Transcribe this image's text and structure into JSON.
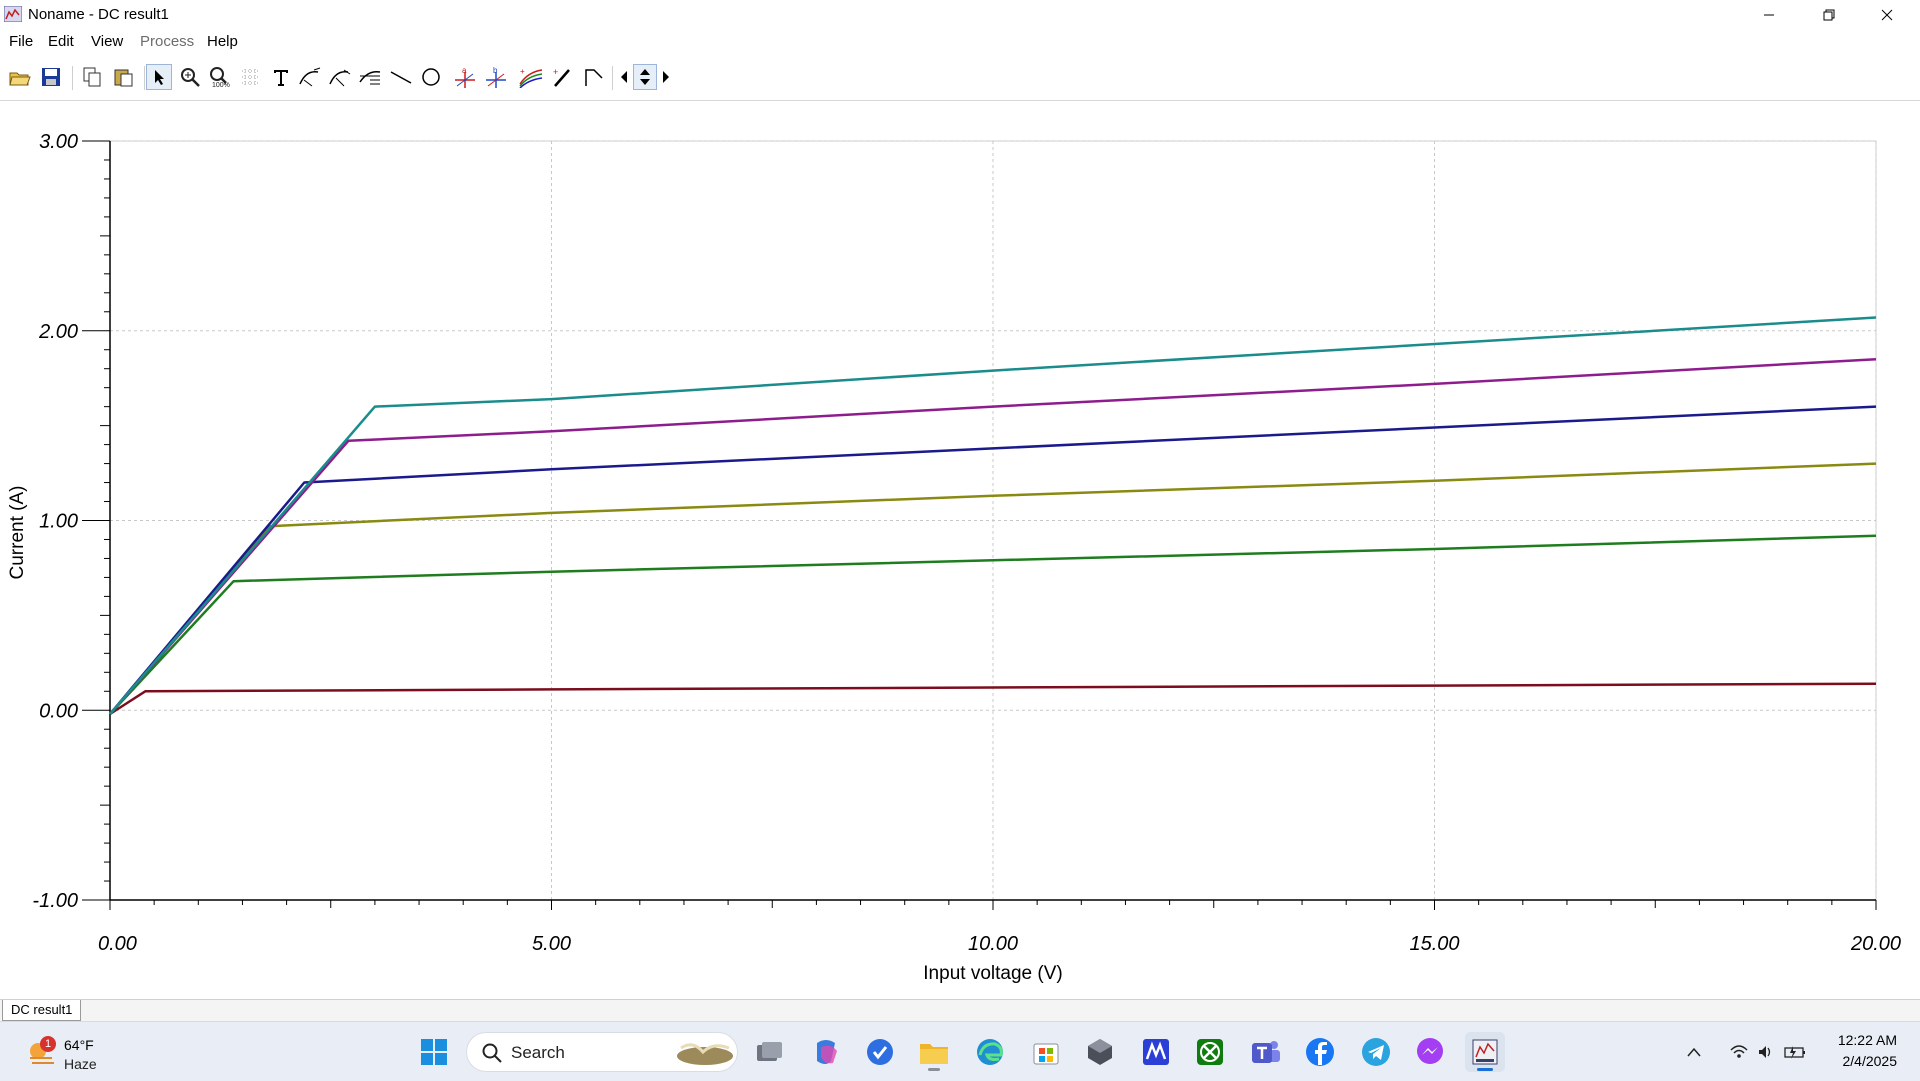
{
  "window": {
    "title": "Noname - DC result1"
  },
  "menu": [
    {
      "label": "File",
      "enabled": true
    },
    {
      "label": "Edit",
      "enabled": true
    },
    {
      "label": "View",
      "enabled": true
    },
    {
      "label": "Process",
      "enabled": false
    },
    {
      "label": "Help",
      "enabled": true
    }
  ],
  "toolbar": {
    "buttons": [
      "open-icon",
      "save-icon",
      "copy-icon",
      "paste-icon",
      "pointer-icon",
      "zoom-in-icon",
      "zoom-100-icon",
      "grid-icon",
      "text-icon",
      "curve-label-icon",
      "curve-label-2-icon",
      "axis-label-icon",
      "line-icon",
      "ellipse-icon",
      "cursor-a-icon",
      "cursor-b-icon",
      "curves-icon",
      "pen-icon",
      "step-icon",
      "nav-left-icon",
      "nav-updown-icon",
      "nav-right-icon"
    ]
  },
  "chart_data": {
    "type": "line",
    "xlabel": "Input voltage (V)",
    "ylabel": "Current (A)",
    "xlim": [
      0,
      20
    ],
    "ylim": [
      -1,
      3
    ],
    "xticks": [
      "0.00",
      "5.00",
      "10.00",
      "15.00",
      "20.00"
    ],
    "yticks": [
      "-1.00",
      "0.00",
      "1.00",
      "2.00",
      "3.00"
    ],
    "grid": true,
    "series": [
      {
        "color": "#7b0d1e",
        "points": [
          [
            0,
            -0.02
          ],
          [
            0.4,
            0.1
          ],
          [
            5,
            0.11
          ],
          [
            10,
            0.12
          ],
          [
            15,
            0.13
          ],
          [
            20,
            0.14
          ]
        ]
      },
      {
        "color": "#1e7d1e",
        "points": [
          [
            0,
            -0.02
          ],
          [
            1.4,
            0.68
          ],
          [
            5,
            0.73
          ],
          [
            10,
            0.79
          ],
          [
            15,
            0.85
          ],
          [
            20,
            0.92
          ]
        ]
      },
      {
        "color": "#8a8a12",
        "points": [
          [
            0,
            -0.02
          ],
          [
            1.8,
            0.97
          ],
          [
            5,
            1.04
          ],
          [
            10,
            1.13
          ],
          [
            15,
            1.21
          ],
          [
            20,
            1.3
          ]
        ]
      },
      {
        "color": "#1a1a8c",
        "points": [
          [
            0,
            -0.02
          ],
          [
            2.2,
            1.2
          ],
          [
            5,
            1.27
          ],
          [
            10,
            1.38
          ],
          [
            15,
            1.49
          ],
          [
            20,
            1.6
          ]
        ]
      },
      {
        "color": "#8d1d8d",
        "points": [
          [
            0,
            -0.02
          ],
          [
            2.7,
            1.42
          ],
          [
            5,
            1.47
          ],
          [
            10,
            1.6
          ],
          [
            15,
            1.72
          ],
          [
            20,
            1.85
          ]
        ]
      },
      {
        "color": "#1a8c8c",
        "points": [
          [
            0,
            -0.02
          ],
          [
            3,
            1.6
          ],
          [
            5,
            1.64
          ],
          [
            10,
            1.79
          ],
          [
            15,
            1.93
          ],
          [
            20,
            2.07
          ]
        ]
      }
    ]
  },
  "status": {
    "tab": "DC result1"
  },
  "taskbar": {
    "weather": {
      "temp": "64°F",
      "desc": "Haze",
      "badge": "1"
    },
    "search": "Search",
    "time": "12:22 AM",
    "date": "2/4/2025"
  }
}
